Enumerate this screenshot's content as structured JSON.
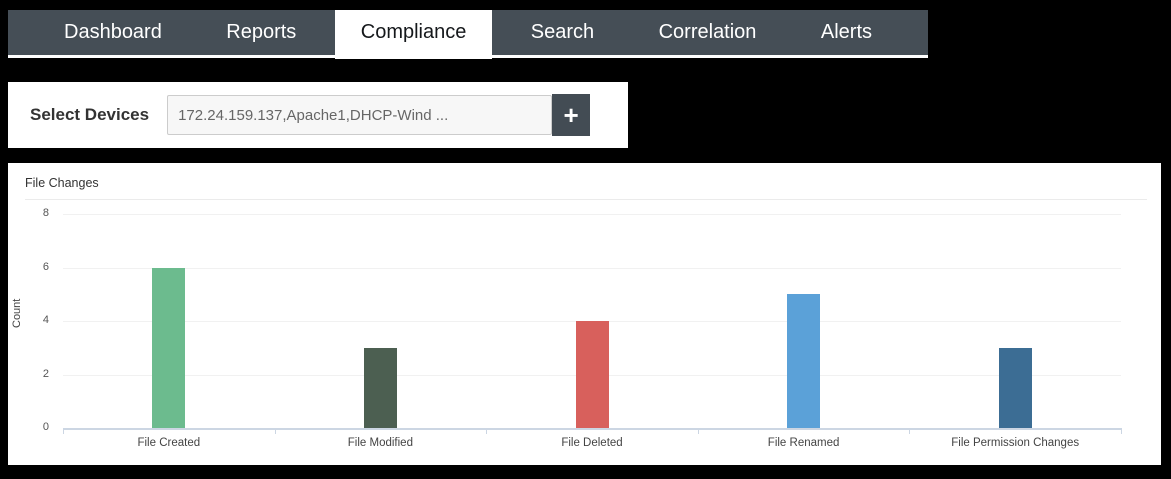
{
  "nav": {
    "tabs": [
      {
        "label": "Dashboard",
        "active": false
      },
      {
        "label": "Reports",
        "active": false
      },
      {
        "label": "Compliance",
        "active": true
      },
      {
        "label": "Search",
        "active": false
      },
      {
        "label": "Correlation",
        "active": false
      },
      {
        "label": "Alerts",
        "active": false
      }
    ]
  },
  "device_selector": {
    "label": "Select Devices",
    "value": "172.24.159.137,Apache1,DHCP-Wind ...",
    "add_button_label": "+",
    "add_icon": "plus-icon"
  },
  "chart_data": {
    "type": "bar",
    "title": "File Changes",
    "categories": [
      "File Created",
      "File Modified",
      "File Deleted",
      "File Renamed",
      "File Permission Changes"
    ],
    "values": [
      6,
      3,
      4,
      5,
      3
    ],
    "bar_colors": [
      "#6cbb8e",
      "#4c5f51",
      "#d8605c",
      "#5ba1d8",
      "#3c6d94"
    ],
    "xlabel": "",
    "ylabel": "Count",
    "ylim": [
      0,
      8
    ],
    "yticks": [
      0,
      2,
      4,
      6,
      8
    ],
    "grid": true,
    "legend": false
  },
  "colors": {
    "nav_background": "#454e56",
    "nav_text": "#ffffff",
    "active_tab_background": "#ffffff",
    "active_tab_text": "#15181b",
    "panel_background": "#ffffff",
    "page_background": "#000000",
    "add_button_background": "#434c54",
    "axis_line": "#ccd6e3",
    "gridline": "#f1f1f1"
  }
}
